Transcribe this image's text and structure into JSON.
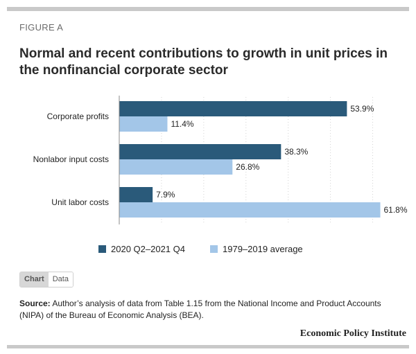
{
  "figure_label": "FIGURE A",
  "title": "Normal and recent contributions to growth in unit prices in the nonfinancial corporate sector",
  "colors": {
    "series1": "#2a5a7a",
    "series2": "#a3c6e8"
  },
  "chart_data": {
    "type": "bar",
    "orientation": "horizontal",
    "categories": [
      "Corporate profits",
      "Nonlabor input costs",
      "Unit labor costs"
    ],
    "series": [
      {
        "name": "2020 Q2–2021 Q4",
        "values": [
          53.9,
          38.3,
          7.9
        ],
        "labels": [
          "53.9%",
          "38.3%",
          "7.9%"
        ]
      },
      {
        "name": "1979–2019 average",
        "values": [
          11.4,
          26.8,
          61.8
        ],
        "labels": [
          "11.4%",
          "26.8%",
          "61.8%"
        ]
      }
    ],
    "xlim": [
      0,
      65
    ],
    "grid": "vertical dotted",
    "legend": "bottom"
  },
  "toggle": {
    "chart": "Chart",
    "data": "Data"
  },
  "source": {
    "label": "Source:",
    "text": "Author’s analysis of data from Table 1.15 from the National Income and Product Accounts (NIPA) of the Bureau of Economic Analysis (BEA)."
  },
  "org": "Economic Policy Institute"
}
